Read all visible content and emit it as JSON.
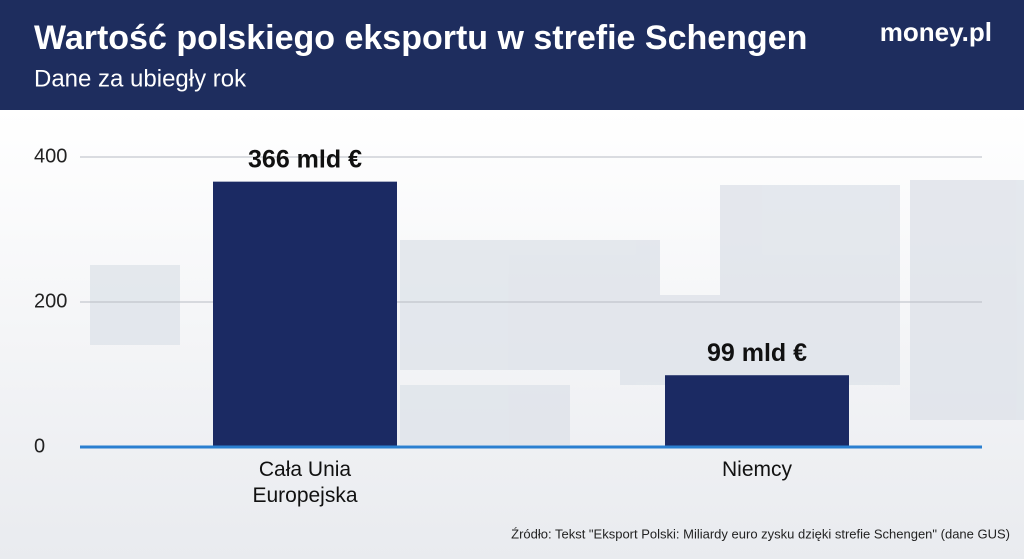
{
  "brand": "money.pl",
  "chart_data": {
    "type": "bar",
    "title": "Wartość polskiego eksportu w strefie Schengen",
    "subtitle": "Dane za ubiegły rok",
    "categories": [
      "Cała Unia Europejska",
      "Niemcy"
    ],
    "values": [
      366,
      99
    ],
    "value_labels": [
      "366 mld €",
      "99 mld €"
    ],
    "color": "#1b2a63",
    "ylim": [
      0,
      400
    ],
    "yticks": [
      0,
      200,
      400
    ],
    "grid": true,
    "source": "Źródło: Tekst \"Eksport Polski: Miliardy euro zysku dzięki strefie Schengen\" (dane GUS)"
  }
}
